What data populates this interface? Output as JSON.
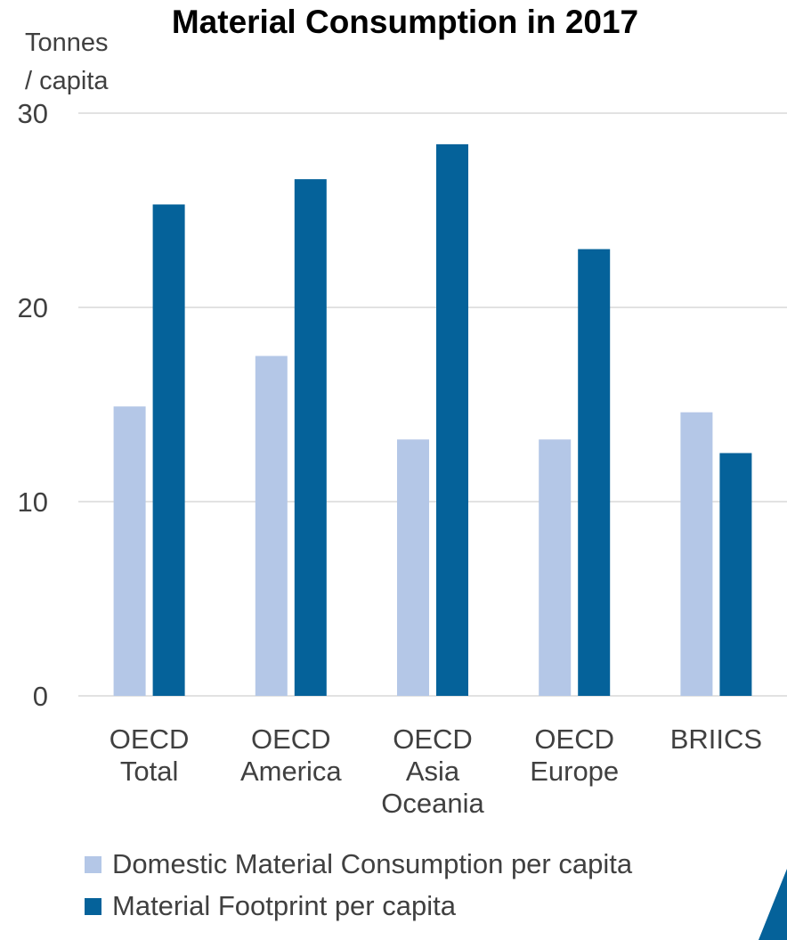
{
  "chart_data": {
    "type": "bar",
    "title": "Material Consumption in 2017",
    "ylabel": [
      "Tonnes",
      "/ capita"
    ],
    "ylim": [
      0,
      30
    ],
    "yticks": [
      "0",
      "10",
      "20",
      "30"
    ],
    "grid": true,
    "legend_position": "bottom",
    "categories": [
      [
        "OECD",
        "Total"
      ],
      [
        "OECD",
        "America"
      ],
      [
        "OECD",
        "Asia",
        "Oceania"
      ],
      [
        "OECD",
        "Europe"
      ],
      [
        "BRIICS"
      ]
    ],
    "series": [
      {
        "name": "Domestic Material Consumption per capita",
        "color": "#b4c7e7",
        "values": [
          14.9,
          17.5,
          13.2,
          13.2,
          14.6
        ]
      },
      {
        "name": "Material Footprint per capita",
        "color": "#05629a",
        "values": [
          25.3,
          26.6,
          28.4,
          23.0,
          12.5
        ]
      }
    ]
  }
}
